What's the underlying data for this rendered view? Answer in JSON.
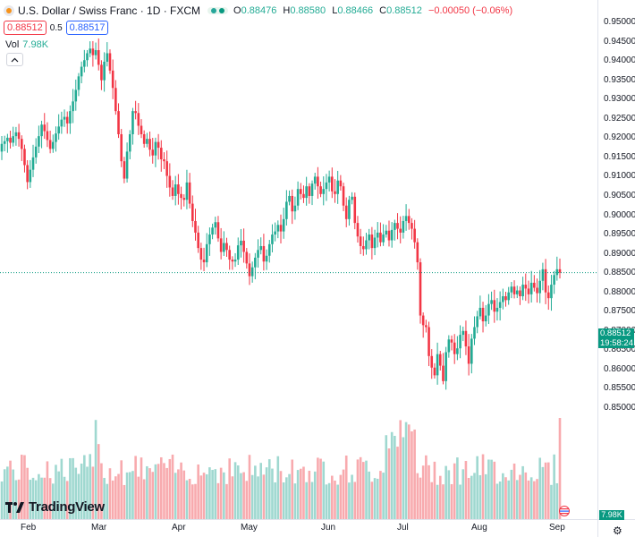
{
  "header": {
    "title": "U.S. Dollar / Swiss Franc · 1D · FXCM",
    "open_label": "O",
    "open": "0.88476",
    "high_label": "H",
    "high": "0.88580",
    "low_label": "L",
    "low": "0.88466",
    "close_label": "C",
    "close": "0.88512",
    "change": "−0.00050 (−0.06%)"
  },
  "trade": {
    "sell_price": "0.88512",
    "spread": "0.5",
    "buy_price": "0.88517"
  },
  "volume_legend": {
    "label": "Vol",
    "value": "7.98K"
  },
  "price_tag": {
    "price": "0.88512",
    "countdown": "19:58:24"
  },
  "volume_tag": "7.98K",
  "branding": "TradingView",
  "colors": {
    "up": "#22ab94",
    "down": "#f23645",
    "up_vol": "#9fd8d0",
    "down_vol": "#f8aaae",
    "last_line": "#089981"
  },
  "icons": [
    "symbol-icon",
    "status-dot-icon",
    "collapse-chevron-icon",
    "tradingview-logo-icon",
    "economic-events-flag-icon",
    "settings-gear-icon"
  ],
  "chart_data": {
    "type": "candlestick",
    "price_axis": {
      "ticks": [
        "0.95000",
        "0.94500",
        "0.94000",
        "0.93500",
        "0.93000",
        "0.92500",
        "0.92000",
        "0.91500",
        "0.91000",
        "0.90500",
        "0.90000",
        "0.89500",
        "0.89000",
        "0.88500",
        "0.88000",
        "0.87500",
        "0.87000",
        "0.86500",
        "0.86000",
        "0.85500",
        "0.85000"
      ],
      "ylim": [
        0.8475,
        0.9515
      ]
    },
    "time_axis": {
      "labels": [
        "Feb",
        "Mar",
        "Apr",
        "May",
        "Jun",
        "Jul",
        "Aug",
        "Sep"
      ]
    },
    "last_price": 0.88512,
    "series_close_approx": [
      0.9185,
      0.9192,
      0.9201,
      0.9188,
      0.9205,
      0.9215,
      0.9198,
      0.9172,
      0.913,
      0.9086,
      0.9118,
      0.915,
      0.9178,
      0.9205,
      0.9235,
      0.9218,
      0.9195,
      0.9172,
      0.919,
      0.9212,
      0.923,
      0.9248,
      0.9255,
      0.9238,
      0.927,
      0.9295,
      0.9325,
      0.936,
      0.9385,
      0.9402,
      0.942,
      0.9432,
      0.9415,
      0.9428,
      0.939,
      0.935,
      0.9398,
      0.942,
      0.9375,
      0.933,
      0.927,
      0.921,
      0.914,
      0.9095,
      0.9165,
      0.921,
      0.927,
      0.9265,
      0.9232,
      0.921,
      0.9185,
      0.9198,
      0.917,
      0.9155,
      0.919,
      0.9175,
      0.9145,
      0.914,
      0.9102,
      0.9072,
      0.905,
      0.908,
      0.9055,
      0.9045,
      0.904,
      0.9085,
      0.903,
      0.8985,
      0.8955,
      0.8915,
      0.8885,
      0.8878,
      0.8925,
      0.895,
      0.8968,
      0.8982,
      0.894,
      0.8905,
      0.8928,
      0.891,
      0.8885,
      0.888,
      0.8885,
      0.8922,
      0.8934,
      0.8905,
      0.8875,
      0.8842,
      0.8865,
      0.889,
      0.891,
      0.892,
      0.888,
      0.8895,
      0.8925,
      0.895,
      0.8958,
      0.8975,
      0.8958,
      0.899,
      0.9035,
      0.905,
      0.901,
      0.9025,
      0.9068,
      0.9055,
      0.9045,
      0.9075,
      0.905,
      0.9082,
      0.91,
      0.9075,
      0.9055,
      0.9068,
      0.9085,
      0.91,
      0.9062,
      0.9055,
      0.909,
      0.9075,
      0.9025,
      0.899,
      0.904,
      0.9048,
      0.898,
      0.8945,
      0.892,
      0.8912,
      0.8935,
      0.895,
      0.8915,
      0.8942,
      0.8955,
      0.893,
      0.895,
      0.896,
      0.8935,
      0.8962,
      0.898,
      0.8965,
      0.8955,
      0.8985,
      0.8998,
      0.898,
      0.8965,
      0.893,
      0.8878,
      0.874,
      0.8715,
      0.871,
      0.8635,
      0.8605,
      0.8585,
      0.864,
      0.861,
      0.857,
      0.8645,
      0.8678,
      0.867,
      0.864,
      0.8655,
      0.869,
      0.87,
      0.866,
      0.8615,
      0.868,
      0.871,
      0.8738,
      0.876,
      0.8725,
      0.874,
      0.877,
      0.878,
      0.875,
      0.876,
      0.8775,
      0.879,
      0.878,
      0.88,
      0.8815,
      0.8795,
      0.8805,
      0.879,
      0.882,
      0.881,
      0.8795,
      0.8825,
      0.8812,
      0.8798,
      0.883,
      0.886,
      0.88,
      0.8785,
      0.882,
      0.8845,
      0.886,
      0.8851
    ]
  }
}
